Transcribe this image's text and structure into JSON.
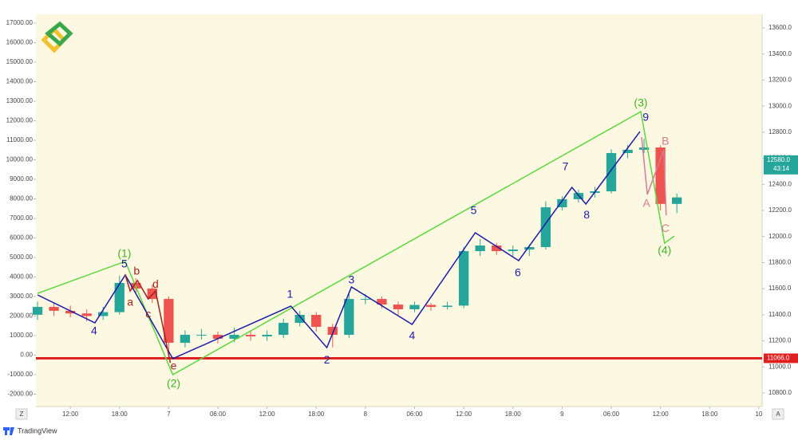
{
  "chart_data": {
    "type": "candlestick",
    "source": "TradingView",
    "x": [
      8,
      10,
      12,
      14,
      16,
      18,
      20,
      22,
      24,
      26,
      28,
      30,
      32,
      34,
      36,
      38,
      40,
      42,
      44,
      46,
      48,
      50,
      52,
      54,
      56,
      58,
      60,
      62,
      64,
      66,
      68,
      70,
      72,
      74,
      76,
      78,
      80,
      82,
      84,
      86
    ],
    "open": [
      11400,
      11460,
      11430,
      11410,
      11390,
      11420,
      11644,
      11601,
      11521,
      11185,
      11246,
      11246,
      11216,
      11246,
      11234,
      11246,
      11338,
      11399,
      11307,
      11246,
      11521,
      11521,
      11478,
      11442,
      11475,
      11460,
      11470,
      11888,
      11931,
      11888,
      11900,
      11919,
      12224,
      12286,
      12334,
      12347,
      12640,
      12665,
      12683,
      12250
    ],
    "high": [
      11500,
      11490,
      11470,
      11440,
      11460,
      11700,
      11680,
      11630,
      11540,
      11280,
      11290,
      11270,
      11300,
      11270,
      11280,
      11370,
      11430,
      11420,
      11330,
      11560,
      11560,
      11540,
      11500,
      11500,
      11490,
      11500,
      11920,
      11980,
      11950,
      11930,
      11940,
      12270,
      12310,
      12360,
      12380,
      12670,
      12700,
      12750,
      12700,
      12330
    ],
    "low": [
      11360,
      11390,
      11380,
      11350,
      11360,
      11400,
      11570,
      11490,
      11080,
      11150,
      11210,
      11180,
      11190,
      11200,
      11200,
      11220,
      11310,
      11270,
      11150,
      11220,
      11480,
      11450,
      11400,
      11420,
      11430,
      11440,
      11450,
      11850,
      11860,
      11850,
      11850,
      11900,
      12200,
      12260,
      12300,
      12330,
      12600,
      12640,
      12200,
      12180
    ],
    "close": [
      11460,
      11430,
      11410,
      11390,
      11420,
      11644,
      11601,
      11521,
      11185,
      11246,
      11246,
      11216,
      11246,
      11234,
      11246,
      11338,
      11399,
      11307,
      11246,
      11521,
      11521,
      11478,
      11442,
      11475,
      11460,
      11470,
      11888,
      11931,
      11888,
      11900,
      11919,
      12224,
      12286,
      12334,
      12347,
      12640,
      12665,
      12683,
      12250,
      12300
    ],
    "up_color": "#26a69a",
    "down_color": "#ef5350",
    "xlim": [
      7.8,
      96.4
    ],
    "xticks": [
      {
        "value": 12,
        "label": "12:00"
      },
      {
        "value": 18,
        "label": "18:00"
      },
      {
        "value": 24,
        "label": "7"
      },
      {
        "value": 30,
        "label": "06:00"
      },
      {
        "value": 36,
        "label": "12:00"
      },
      {
        "value": 42,
        "label": "18:00"
      },
      {
        "value": 48,
        "label": "8"
      },
      {
        "value": 54,
        "label": "06:00"
      },
      {
        "value": 60,
        "label": "12:00"
      },
      {
        "value": 66,
        "label": "18:00"
      },
      {
        "value": 72,
        "label": "9"
      },
      {
        "value": 78,
        "label": "06:00"
      },
      {
        "value": 84,
        "label": "12:00"
      },
      {
        "value": 90,
        "label": "18:00"
      },
      {
        "value": 96,
        "label": "10"
      }
    ],
    "ylim": [
      10696,
      13704
    ],
    "yticks": [
      {
        "value": 10800,
        "label": "10800.0"
      },
      {
        "value": 11000,
        "label": "11000.0"
      },
      {
        "value": 11200,
        "label": "11200.0"
      },
      {
        "value": 11400,
        "label": "11400.0"
      },
      {
        "value": 11600,
        "label": "11600.0"
      },
      {
        "value": 11800,
        "label": "11800.0"
      },
      {
        "value": 12000,
        "label": "12000.0"
      },
      {
        "value": 12200,
        "label": "12200.0"
      },
      {
        "value": 12400,
        "label": "12400.0"
      },
      {
        "value": 12600,
        "label": "12600.0"
      },
      {
        "value": 12800,
        "label": "12800.0"
      },
      {
        "value": 13000,
        "label": "13000.0"
      },
      {
        "value": 13200,
        "label": "13200.0"
      },
      {
        "value": 13400,
        "label": "13400.0"
      },
      {
        "value": 13600,
        "label": "13600.0"
      }
    ],
    "y2lim": [
      -2633,
      17449
    ],
    "y2ticks": [
      {
        "value": -2000,
        "label": "-2000.00"
      },
      {
        "value": -1000,
        "label": "-1000.00"
      },
      {
        "value": 0,
        "label": "0.00"
      },
      {
        "value": 1000,
        "label": "1000.00"
      },
      {
        "value": 2000,
        "label": "2000.00"
      },
      {
        "value": 3000,
        "label": "3000.00"
      },
      {
        "value": 4000,
        "label": "4000.00"
      },
      {
        "value": 5000,
        "label": "5000.00"
      },
      {
        "value": 6000,
        "label": "6000.00"
      },
      {
        "value": 7000,
        "label": "7000.00"
      },
      {
        "value": 8000,
        "label": "8000.00"
      },
      {
        "value": 9000,
        "label": "9000.00"
      },
      {
        "value": 10000,
        "label": "10000.00"
      },
      {
        "value": 11000,
        "label": "11000.00"
      },
      {
        "value": 12000,
        "label": "12000.00"
      },
      {
        "value": 13000,
        "label": "13000.00"
      },
      {
        "value": 14000,
        "label": "14000.00"
      },
      {
        "value": 15000,
        "label": "15000.00"
      },
      {
        "value": 16000,
        "label": "16000.00"
      },
      {
        "value": 17000,
        "label": "17000.00"
      }
    ],
    "hline": {
      "value": 11066,
      "label": "11066.0",
      "color": "#e02020"
    },
    "last_price": {
      "value": 12580,
      "label": "12580.0",
      "color": "#26a69a"
    },
    "countdown": "43:14",
    "lines": [
      {
        "color": "#5cd63c",
        "x": [
          8.0,
          18.7,
          24.5,
          81.6,
          84.5,
          85.7
        ],
        "y": [
          11564,
          11809,
          10940,
          12958,
          11949,
          12004
        ]
      },
      {
        "color": "#1c1ca8",
        "x": [
          8.0,
          15.0,
          18.7,
          24.5,
          38.9,
          43.3,
          46.3,
          53.7,
          61.4,
          66.7,
          73.2,
          74.9,
          81.5
        ],
        "y": [
          11552,
          11338,
          11705,
          11063,
          11466,
          11148,
          11613,
          11326,
          12029,
          11815,
          12377,
          12249,
          12805
        ]
      },
      {
        "color": "#a3241a",
        "x": [
          18.7,
          19.3,
          20.2,
          21.5,
          22.4,
          24.2
        ],
        "y": [
          11705,
          11582,
          11662,
          11521,
          11582,
          11032
        ]
      },
      {
        "color": "#d77a98",
        "x": [
          81.7,
          82.4,
          84.4,
          84.7
        ],
        "y": [
          12762,
          12322,
          12665,
          12163
        ]
      }
    ],
    "annotations": [
      {
        "text": "(1)",
        "x": 18.6,
        "y": 11864,
        "color": "#3fb51f"
      },
      {
        "text": "(2)",
        "x": 24.6,
        "y": 10867,
        "color": "#3fb51f"
      },
      {
        "text": "(3)",
        "x": 81.6,
        "y": 13019,
        "color": "#3fb51f"
      },
      {
        "text": "(4)",
        "x": 84.5,
        "y": 11888,
        "color": "#3fb51f"
      },
      {
        "text": "4",
        "x": 14.9,
        "y": 11271,
        "color": "#1c1ca8"
      },
      {
        "text": "5",
        "x": 18.6,
        "y": 11784,
        "color": "#1c1ca8"
      },
      {
        "text": "1",
        "x": 38.8,
        "y": 11552,
        "color": "#1c1ca8"
      },
      {
        "text": "2",
        "x": 43.3,
        "y": 11050,
        "color": "#1c1ca8"
      },
      {
        "text": "3",
        "x": 46.3,
        "y": 11662,
        "color": "#1c1ca8"
      },
      {
        "text": "4",
        "x": 53.7,
        "y": 11234,
        "color": "#1c1ca8"
      },
      {
        "text": "5",
        "x": 61.2,
        "y": 12194,
        "color": "#1c1ca8"
      },
      {
        "text": "6",
        "x": 66.6,
        "y": 11717,
        "color": "#1c1ca8"
      },
      {
        "text": "7",
        "x": 72.4,
        "y": 12530,
        "color": "#1c1ca8"
      },
      {
        "text": "8",
        "x": 75.0,
        "y": 12163,
        "color": "#1c1ca8"
      },
      {
        "text": "9",
        "x": 82.2,
        "y": 12909,
        "color": "#1c1ca8"
      },
      {
        "text": "a",
        "x": 19.3,
        "y": 11491,
        "color": "#a3241a"
      },
      {
        "text": "b",
        "x": 20.1,
        "y": 11729,
        "color": "#a3241a"
      },
      {
        "text": "c",
        "x": 21.5,
        "y": 11399,
        "color": "#a3241a"
      },
      {
        "text": "d",
        "x": 22.4,
        "y": 11631,
        "color": "#a3241a"
      },
      {
        "text": "e",
        "x": 24.6,
        "y": 11002,
        "color": "#a3241a"
      },
      {
        "text": "A",
        "x": 82.3,
        "y": 12249,
        "color": "#d77a98"
      },
      {
        "text": "B",
        "x": 84.6,
        "y": 12726,
        "color": "#d77a98"
      },
      {
        "text": "C",
        "x": 84.6,
        "y": 12059,
        "color": "#d77a98"
      }
    ],
    "left_button": "Z",
    "right_button": "A"
  }
}
